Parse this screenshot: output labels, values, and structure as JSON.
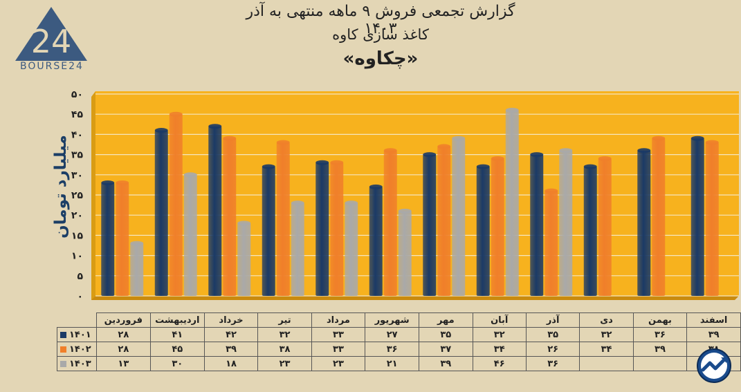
{
  "logo": {
    "text": "BOURSE24",
    "mark": "24",
    "color": "#3c5a80"
  },
  "titles": {
    "line1": "گزارش تجمعی فروش ۹ ماهه منتهی به آذر ۱۴۰۳",
    "line2": "کاغذ سازی کاوه",
    "line3": "«چکاوه»"
  },
  "chart_data": {
    "type": "bar",
    "ylabel": "میلیارد تومان",
    "ylim": [
      0,
      50
    ],
    "yticks": [
      0,
      5,
      10,
      15,
      20,
      25,
      30,
      35,
      40,
      45,
      50
    ],
    "ytick_labels": [
      "۰",
      "۵",
      "۱۰",
      "۱۵",
      "۲۰",
      "۲۵",
      "۳۰",
      "۳۵",
      "۴۰",
      "۴۵",
      "۵۰"
    ],
    "categories": [
      "فروردین",
      "اردیبهشت",
      "خرداد",
      "تیر",
      "مرداد",
      "شهریور",
      "مهر",
      "آبان",
      "آذر",
      "دی",
      "بهمن",
      "اسفند"
    ],
    "series": [
      {
        "name": "۱۴۰۱",
        "color": "#1b3a66",
        "values": [
          28,
          41,
          42,
          32,
          33,
          27,
          35,
          32,
          35,
          32,
          36,
          39
        ],
        "labels": [
          "۲۸",
          "۴۱",
          "۴۲",
          "۳۲",
          "۳۳",
          "۲۷",
          "۳۵",
          "۳۲",
          "۳۵",
          "۳۲",
          "۳۶",
          "۳۹"
        ]
      },
      {
        "name": "۱۴۰۲",
        "color": "#f07f2a",
        "values": [
          28,
          45,
          39,
          38,
          33,
          36,
          37,
          34,
          26,
          34,
          39,
          38
        ],
        "labels": [
          "۲۸",
          "۴۵",
          "۳۹",
          "۳۸",
          "۳۳",
          "۳۶",
          "۳۷",
          "۳۴",
          "۲۶",
          "۳۴",
          "۳۹",
          "۳۸"
        ]
      },
      {
        "name": "۱۴۰۳",
        "color": "#a9a9a9",
        "values": [
          13,
          30,
          18,
          23,
          23,
          21,
          39,
          46,
          36,
          null,
          null,
          null
        ],
        "labels": [
          "۱۳",
          "۳۰",
          "۱۸",
          "۲۳",
          "۲۳",
          "۲۱",
          "۳۹",
          "۴۶",
          "۳۶",
          "",
          "",
          ""
        ]
      }
    ],
    "grid": true,
    "plot_background": "#f7b21e",
    "legend": "table-below"
  }
}
